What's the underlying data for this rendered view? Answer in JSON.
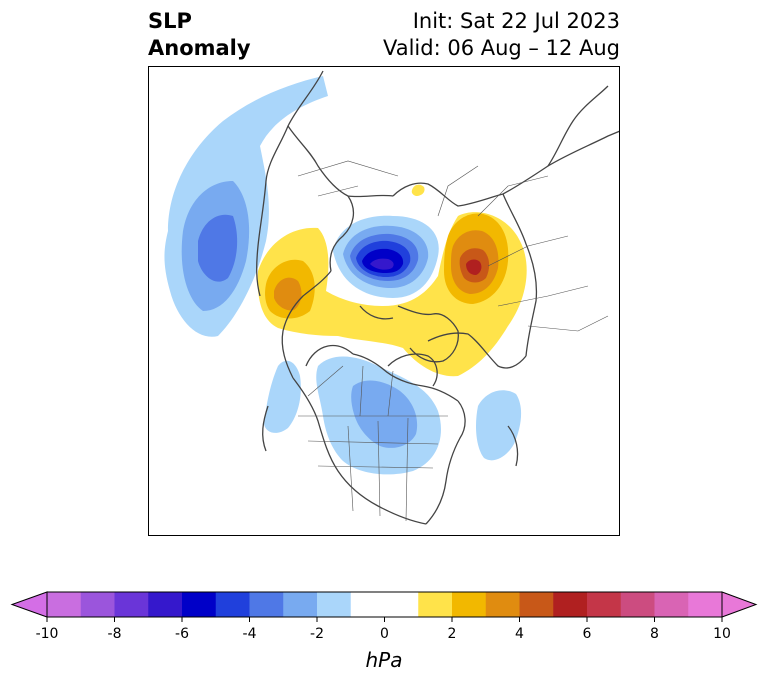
{
  "title": {
    "line1": "SLP",
    "line2": "Anomaly"
  },
  "run": {
    "init": "Init: Sat 22 Jul 2023",
    "valid": "Valid: 06 Aug – 12 Aug"
  },
  "colorbar": {
    "unit": "hPa",
    "ticks": [
      "-10",
      "-8",
      "-6",
      "-4",
      "-2",
      "0",
      "2",
      "4",
      "6",
      "8",
      "10"
    ],
    "levels": [
      -10,
      -9,
      -8,
      -7,
      -6,
      -5,
      -4,
      -3,
      -2,
      -1,
      1,
      2,
      3,
      4,
      5,
      6,
      7,
      8,
      9,
      10
    ],
    "colors": [
      "#c96ee0",
      "#9b55dc",
      "#6a35d8",
      "#3518cc",
      "#0000c8",
      "#2040dc",
      "#4f78e6",
      "#78aaf0",
      "#aad6fa",
      "#ffffff",
      "#ffe34a",
      "#f2b800",
      "#e08c10",
      "#c85818",
      "#b02020",
      "#c43648",
      "#cc4c80",
      "#d964b4",
      "#e878d8"
    ],
    "under": "#d46ee6",
    "over": "#e878d8"
  },
  "colors": {
    "land_outline": "#444444",
    "frame": "#000000"
  }
}
